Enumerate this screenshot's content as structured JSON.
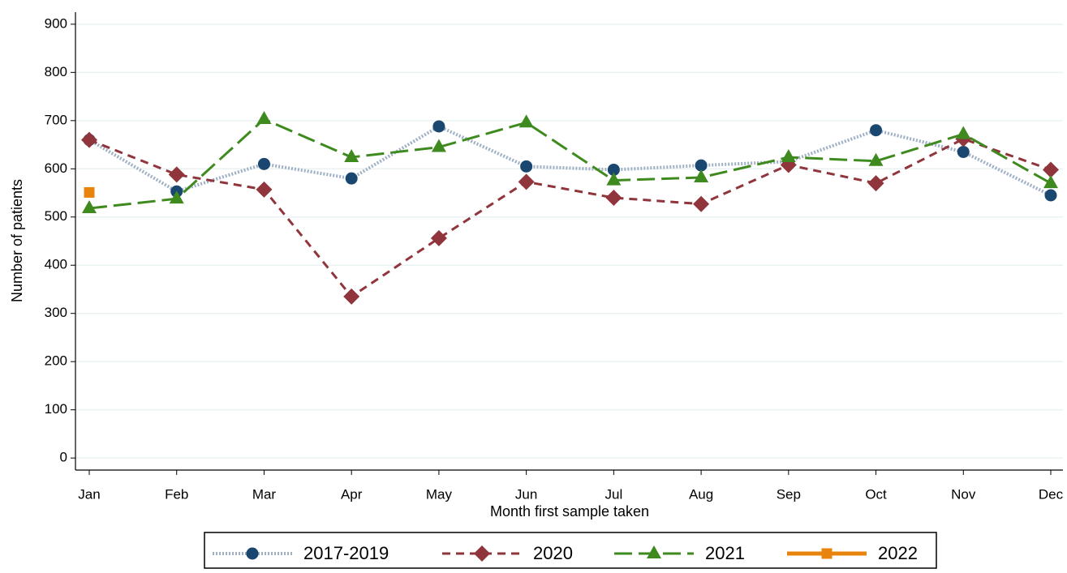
{
  "chart_data": {
    "type": "line",
    "x_label": "Month first sample taken",
    "y_label": "Number of patients",
    "categories": [
      "Jan",
      "Feb",
      "Mar",
      "Apr",
      "May",
      "Jun",
      "Jul",
      "Aug",
      "Sep",
      "Oct",
      "Nov",
      "Dec"
    ],
    "series": [
      {
        "name": "2017-2019",
        "color": "#1a476f",
        "line_style": "dotted",
        "marker": "circle",
        "values": [
          660,
          553,
          610,
          580,
          688,
          605,
          598,
          607,
          615,
          680,
          635,
          545
        ]
      },
      {
        "name": "2020",
        "color": "#90353b",
        "line_style": "dash",
        "marker": "diamond",
        "values": [
          660,
          588,
          557,
          335,
          456,
          573,
          540,
          527,
          608,
          570,
          662,
          598
        ]
      },
      {
        "name": "2021",
        "color": "#3f8a1f",
        "line_style": "longdash",
        "marker": "triangle",
        "values": [
          518,
          538,
          703,
          624,
          645,
          696,
          576,
          582,
          624,
          616,
          672,
          570
        ]
      },
      {
        "name": "2022",
        "color": "#e8830c",
        "line_style": "solid",
        "marker": "square",
        "values": [
          551,
          null,
          null,
          null,
          null,
          null,
          null,
          null,
          null,
          null,
          null,
          null
        ]
      }
    ],
    "ylim": [
      -25,
      925
    ],
    "yticks": [
      0,
      100,
      200,
      300,
      400,
      500,
      600,
      700,
      800,
      900
    ],
    "grid": true
  }
}
